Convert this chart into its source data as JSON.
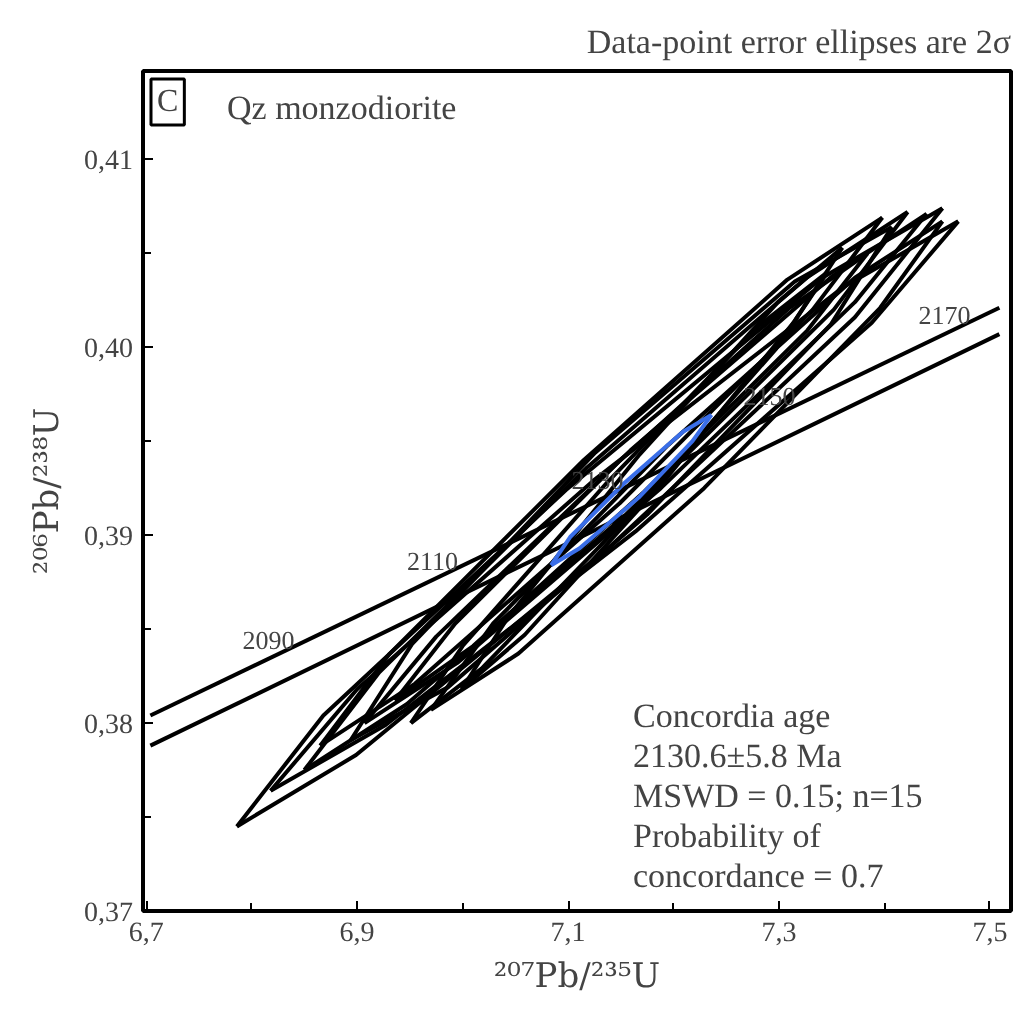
{
  "chart_data": {
    "type": "line",
    "title": "Data-point error ellipses are 2σ",
    "subtitle": "Qz monzodiorite",
    "xlabel": "²⁰⁷Pb/²³⁵U",
    "ylabel": "²⁰⁶Pb/²³⁸U",
    "xlim": [
      6.697,
      7.52
    ],
    "ylim": [
      0.37,
      0.4147
    ],
    "xticks": [
      {
        "value": 6.7,
        "label": "6,7"
      },
      {
        "value": 6.8,
        "label": null
      },
      {
        "value": 6.9,
        "label": "6,9"
      },
      {
        "value": 7.0,
        "label": null
      },
      {
        "value": 7.1,
        "label": "7,1"
      },
      {
        "value": 7.2,
        "label": null
      },
      {
        "value": 7.3,
        "label": "7,3"
      },
      {
        "value": 7.4,
        "label": null
      },
      {
        "value": 7.5,
        "label": "7,5"
      }
    ],
    "yticks": [
      {
        "value": 0.37,
        "label": "0,37"
      },
      {
        "value": 0.375,
        "label": null
      },
      {
        "value": 0.38,
        "label": "0,38"
      },
      {
        "value": 0.385,
        "label": null
      },
      {
        "value": 0.39,
        "label": "0,39"
      },
      {
        "value": 0.395,
        "label": null
      },
      {
        "value": 0.4,
        "label": "0,40"
      },
      {
        "value": 0.405,
        "label": null
      },
      {
        "value": 0.41,
        "label": "0,41"
      }
    ],
    "grid": false,
    "marker": "none",
    "line_style": "solid",
    "series": [
      {
        "color": "#000000",
        "x": [
          6.704,
          7.509
        ],
        "values": [
          0.3804,
          0.4021
        ]
      },
      {
        "color": "#000000",
        "x": [
          6.704,
          7.509
        ],
        "values": [
          0.3788,
          0.4007
        ]
      },
      {
        "color": "#000000",
        "x": [
          6.786,
          6.899,
          7.142,
          7.372,
          7.455
        ],
        "values": [
          0.3745,
          0.3783,
          0.3895,
          0.4016,
          0.4074
        ]
      },
      {
        "color": "#000000",
        "x": [
          6.786,
          6.868,
          7.098,
          7.341,
          7.455
        ],
        "values": [
          0.3745,
          0.3804,
          0.3924,
          0.4037,
          0.4074
        ]
      },
      {
        "color": "#000000",
        "x": [
          6.818,
          6.927,
          7.164,
          7.388,
          7.47
        ],
        "values": [
          0.3764,
          0.3799,
          0.3902,
          0.4013,
          0.4067
        ]
      },
      {
        "color": "#000000",
        "x": [
          6.818,
          6.9,
          7.124,
          7.361,
          7.47
        ],
        "values": [
          0.3764,
          0.3818,
          0.3929,
          0.4032,
          0.4067
        ]
      },
      {
        "color": "#000000",
        "x": [
          6.85,
          6.947,
          7.155,
          7.352,
          7.422
        ],
        "values": [
          0.3775,
          0.381,
          0.3911,
          0.402,
          0.4072
        ]
      },
      {
        "color": "#000000",
        "x": [
          6.85,
          6.921,
          7.118,
          7.326,
          7.422
        ],
        "values": [
          0.3775,
          0.3827,
          0.3936,
          0.4037,
          0.4072
        ]
      },
      {
        "color": "#000000",
        "x": [
          6.865,
          6.955,
          7.149,
          7.332,
          7.398
        ],
        "values": [
          0.3788,
          0.3821,
          0.3917,
          0.402,
          0.4069
        ]
      },
      {
        "color": "#000000",
        "x": [
          6.865,
          6.931,
          7.115,
          7.308,
          7.398
        ],
        "values": [
          0.3788,
          0.3837,
          0.394,
          0.4036,
          0.4069
        ]
      },
      {
        "color": "#000000",
        "x": [
          6.907,
          6.995,
          7.188,
          7.372,
          7.44
        ],
        "values": [
          0.38,
          0.3832,
          0.3925,
          0.4024,
          0.4071
        ]
      },
      {
        "color": "#000000",
        "x": [
          6.907,
          6.975,
          7.159,
          7.351,
          7.44
        ],
        "values": [
          0.38,
          0.3846,
          0.3945,
          0.4038,
          0.4071
        ]
      },
      {
        "color": "#000000",
        "x": [
          6.936,
          7.01,
          7.172,
          7.327,
          7.384
        ],
        "values": [
          0.3812,
          0.3841,
          0.3923,
          0.4009,
          0.405
        ]
      },
      {
        "color": "#000000",
        "x": [
          6.936,
          6.993,
          7.148,
          7.31,
          7.384
        ],
        "values": [
          0.3812,
          0.3853,
          0.3939,
          0.4021,
          0.405
        ]
      },
      {
        "color": "#000000",
        "x": [
          6.951,
          7.018,
          7.161,
          7.297,
          7.346
        ],
        "values": [
          0.38,
          0.3829,
          0.3912,
          0.3999,
          0.404
        ]
      },
      {
        "color": "#000000",
        "x": [
          6.951,
          7.0,
          7.137,
          7.28,
          7.346
        ],
        "values": [
          0.38,
          0.3841,
          0.3928,
          0.4011,
          0.404
        ]
      },
      {
        "color": "#000000",
        "x": [
          6.894,
          6.986,
          7.175,
          7.349,
          7.407
        ],
        "values": [
          0.3791,
          0.3819,
          0.3911,
          0.4012,
          0.4064
        ]
      },
      {
        "color": "#000000",
        "x": [
          6.894,
          6.952,
          7.126,
          7.315,
          7.407
        ],
        "values": [
          0.3791,
          0.3842,
          0.3944,
          0.4035,
          0.4064
        ]
      },
      {
        "color": "#000000",
        "x": [
          6.97,
          7.053,
          7.229,
          7.396,
          7.455
        ],
        "values": [
          0.3807,
          0.3837,
          0.3925,
          0.4021,
          0.4067
        ]
      },
      {
        "color": "#000000",
        "x": [
          6.97,
          7.029,
          7.195,
          7.372,
          7.455
        ],
        "values": [
          0.3807,
          0.3853,
          0.3948,
          0.4037,
          0.4067
        ]
      },
      {
        "color": "#000000",
        "x": [
          6.999,
          7.059,
          7.19,
          7.315,
          7.36
        ],
        "values": [
          0.3818,
          0.3847,
          0.3928,
          0.4014,
          0.4053
        ]
      },
      {
        "color": "#000000",
        "x": [
          6.999,
          7.044,
          7.168,
          7.299,
          7.36
        ],
        "values": [
          0.3818,
          0.3857,
          0.3943,
          0.4024,
          0.4053
        ]
      },
      {
        "color": "#3a6ee8",
        "x": [
          7.084,
          7.111,
          7.167,
          7.218,
          7.236
        ],
        "values": [
          0.3884,
          0.3893,
          0.392,
          0.395,
          0.3964
        ]
      },
      {
        "color": "#3a6ee8",
        "x": [
          7.084,
          7.102,
          7.154,
          7.209,
          7.236
        ],
        "values": [
          0.3884,
          0.3899,
          0.3928,
          0.3955,
          0.3964
        ]
      }
    ],
    "annotations": [
      "C",
      {
        "text": "2090",
        "x": 6.833,
        "y": 0.3832
      },
      {
        "text": "2110",
        "x": 6.989,
        "y": 0.3874
      },
      {
        "text": "2130",
        "x": 7.145,
        "y": 0.3917
      },
      {
        "text": "2150",
        "x": 7.308,
        "y": 0.3962
      },
      {
        "text": "2170",
        "x": 7.474,
        "y": 0.4005
      },
      "Concordia age",
      "2130.6±5.8 Ma",
      "MSWD = 0.15; n=15",
      "Probability of",
      "concordance = 0.7"
    ]
  }
}
